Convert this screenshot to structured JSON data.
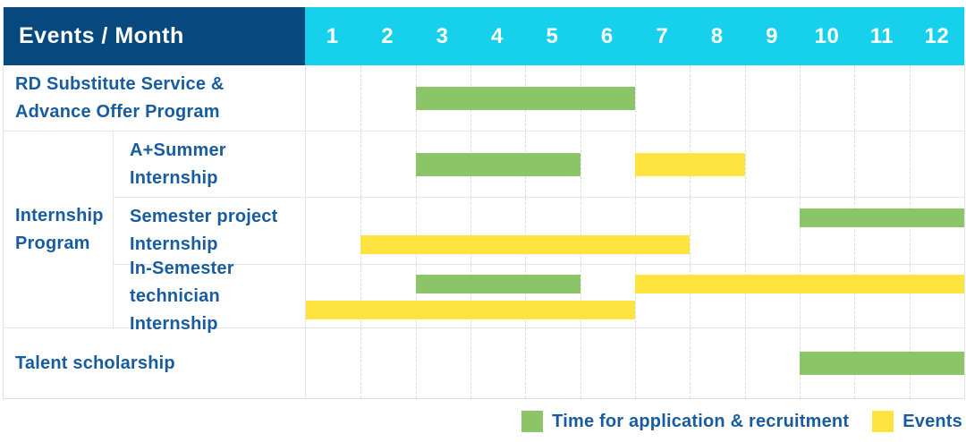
{
  "header": {
    "corner": "Events / Month"
  },
  "colors": {
    "navy": "#07497E",
    "cyan": "#16D0EC",
    "green": "#8CC567",
    "yellow": "#FFE33F",
    "blue": "#185C9E",
    "grid": "#E5E5E5"
  },
  "chart_data": {
    "type": "bar",
    "subtype": "gantt",
    "title": "Events / Month",
    "x_axis": {
      "label": "Month",
      "ticks": [
        "1",
        "2",
        "3",
        "4",
        "5",
        "6",
        "7",
        "8",
        "9",
        "10",
        "11",
        "12"
      ],
      "range": [
        1,
        13
      ]
    },
    "legend": [
      {
        "key": "application",
        "name": "Time for application & recruitment",
        "color": "#8CC567"
      },
      {
        "key": "event",
        "name": "Events",
        "color": "#FFE33F"
      }
    ],
    "rows": [
      {
        "label": "RD Substitute Service &\nAdvance Offer Program",
        "group": null,
        "bars": [
          {
            "type": "application",
            "start": 3,
            "end": 7,
            "lane": "center",
            "months": "3-6"
          }
        ]
      },
      {
        "label": "A+Summer\nInternship",
        "group": "Internship\nProgram",
        "bars": [
          {
            "type": "application",
            "start": 3,
            "end": 6,
            "lane": "center",
            "months": "3-5"
          },
          {
            "type": "event",
            "start": 7,
            "end": 9,
            "lane": "center",
            "months": "7-8"
          }
        ]
      },
      {
        "label": "Semester project\nInternship",
        "group": "Internship\nProgram",
        "bars": [
          {
            "type": "application",
            "start": 10,
            "end": 13,
            "lane": "top",
            "months": "10-12"
          },
          {
            "type": "event",
            "start": 2,
            "end": 8,
            "lane": "bottom",
            "months": "2-7"
          }
        ]
      },
      {
        "label": "In-Semester\ntechnician Internship",
        "group": "Internship\nProgram",
        "bars": [
          {
            "type": "application",
            "start": 3,
            "end": 6,
            "lane": "top",
            "months": "3-5"
          },
          {
            "type": "event",
            "start": 7,
            "end": 13,
            "lane": "top",
            "months": "7-12"
          },
          {
            "type": "event",
            "start": 1,
            "end": 7,
            "lane": "bottom",
            "months": "1-6"
          }
        ]
      },
      {
        "label": "Talent scholarship",
        "group": null,
        "bars": [
          {
            "type": "application",
            "start": 10,
            "end": 13,
            "lane": "center",
            "months": "10-12"
          }
        ]
      }
    ]
  }
}
